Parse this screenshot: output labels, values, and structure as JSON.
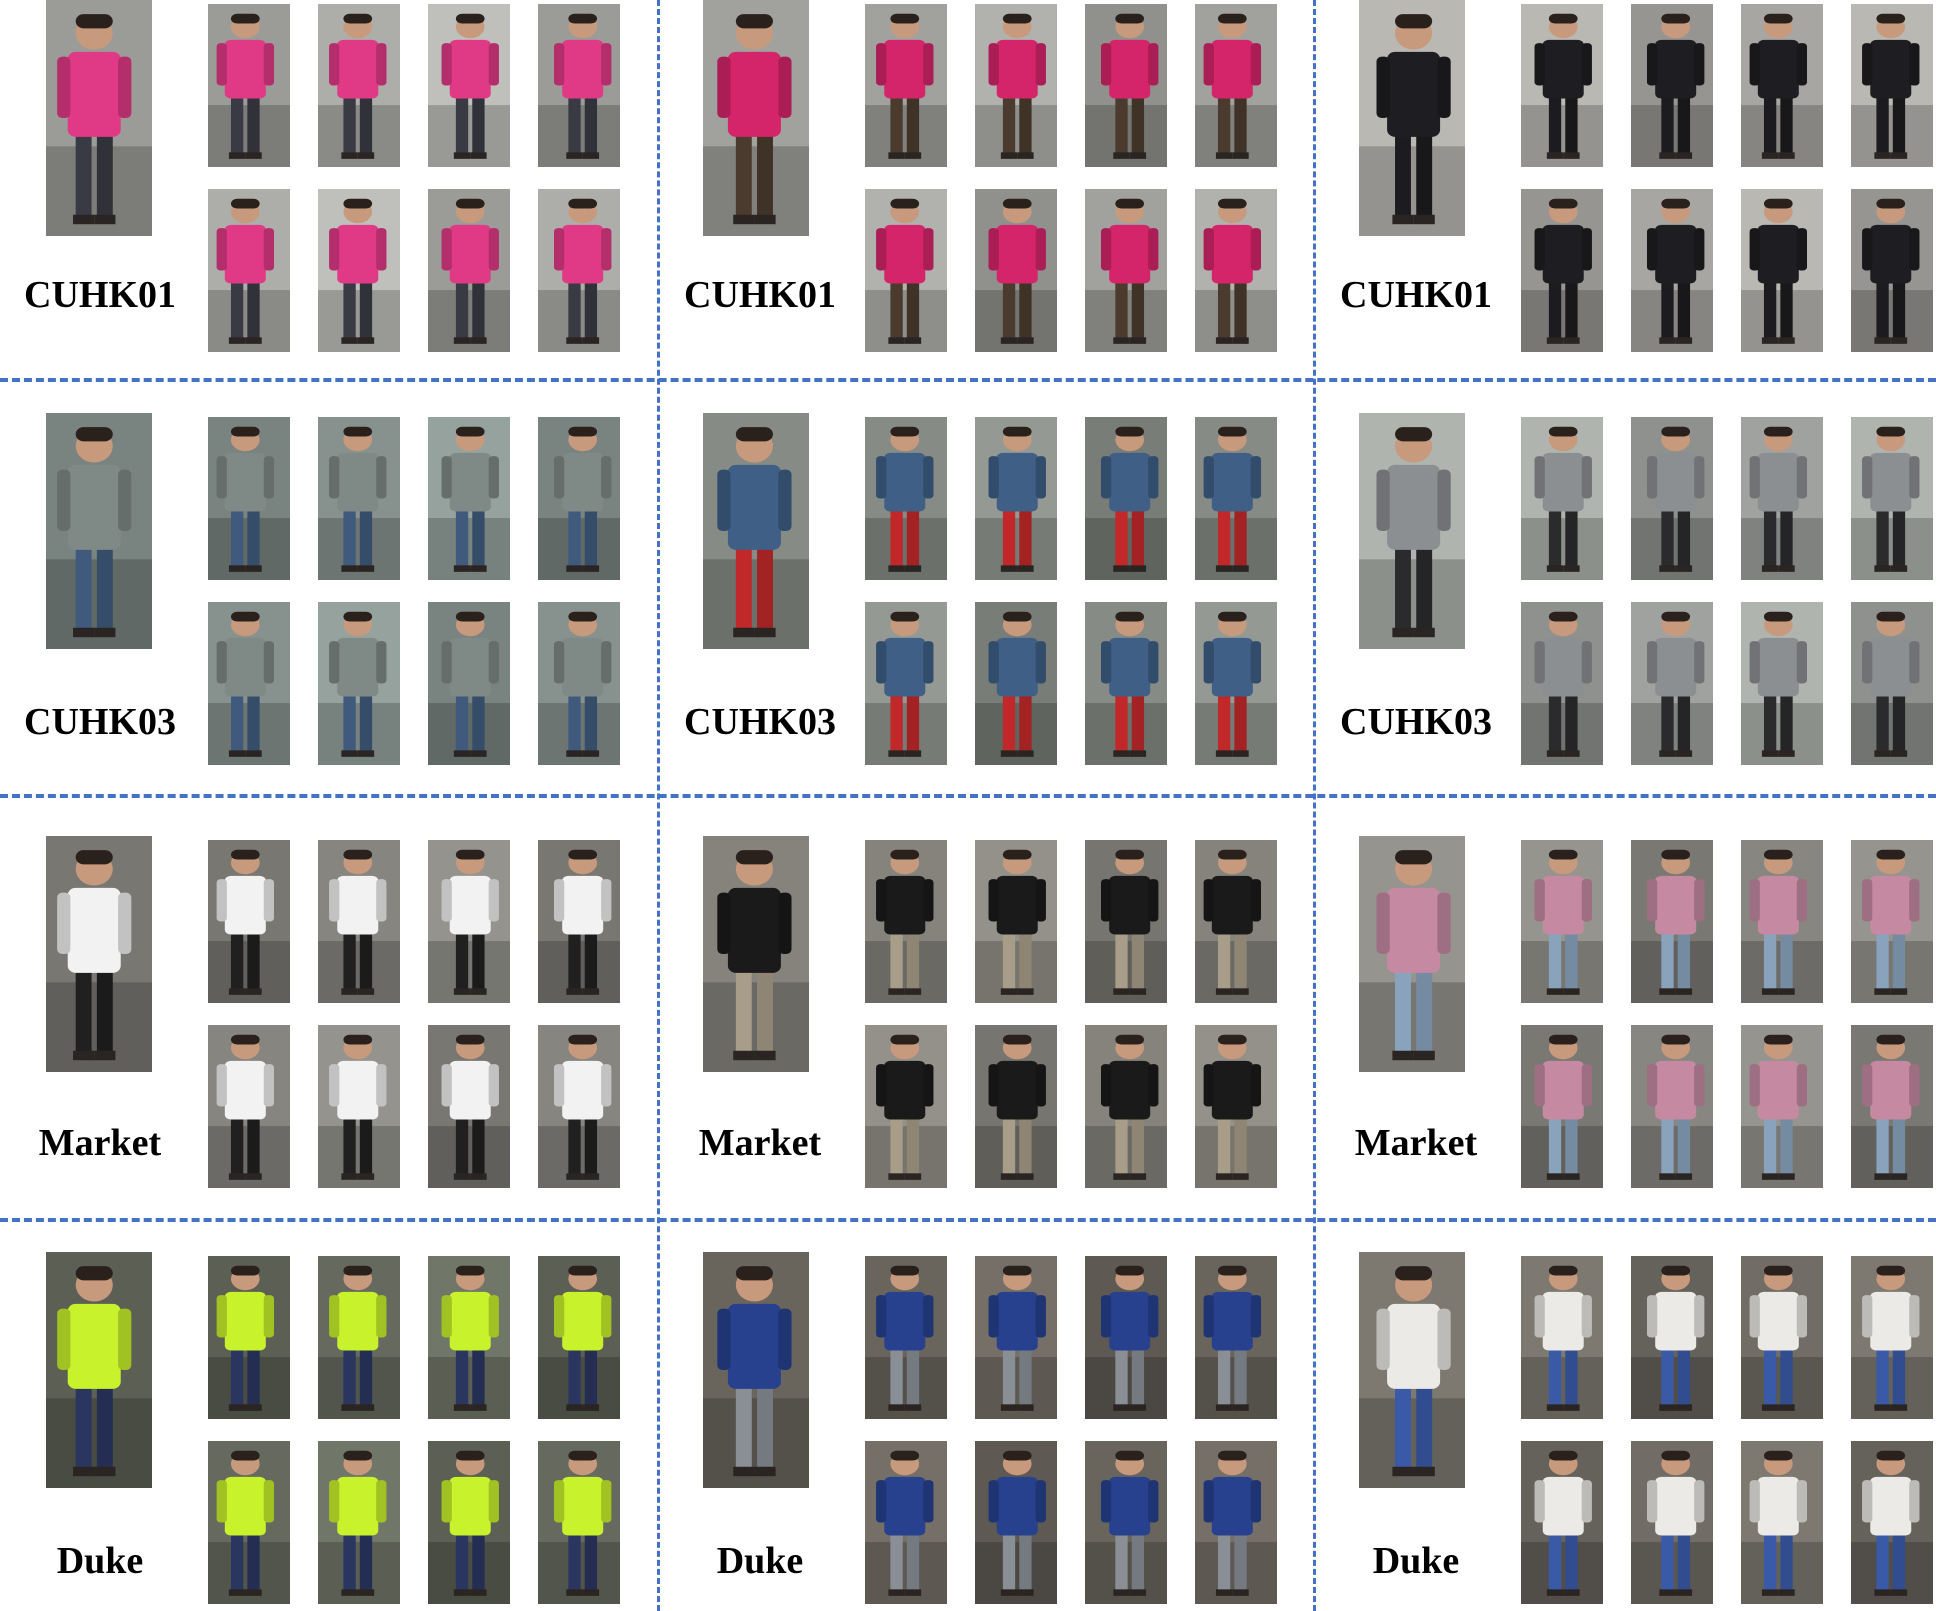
{
  "panels": [
    {
      "dataset": "CUHK01",
      "tones": [
        {
          "top": "#e03a86",
          "bottom": "#3a3a44",
          "bg": "#b6b6b2"
        },
        {
          "top": "#d4256a",
          "bottom": "#4a3b2e",
          "bg": "#a9a9a5"
        },
        {
          "top": "#1e1e22",
          "bottom": "#1c1c20",
          "bg": "#b0afaa"
        }
      ]
    },
    {
      "dataset": "CUHK03",
      "tones": [
        {
          "top": "#7f8a86",
          "bottom": "#3f5a7c",
          "bg": "#8e9a96"
        },
        {
          "top": "#3f5f86",
          "bottom": "#c0282a",
          "bg": "#8d938c"
        },
        {
          "top": "#8c8f92",
          "bottom": "#2b2b2e",
          "bg": "#a7aba6"
        }
      ]
    },
    {
      "dataset": "Market",
      "tones": [
        {
          "top": "#f2f2f2",
          "bottom": "#202020",
          "bg": "#8d8c86"
        },
        {
          "top": "#1a1a1a",
          "bottom": "#a79d88",
          "bg": "#8c8a82"
        },
        {
          "top": "#c58aa2",
          "bottom": "#8aa3bd",
          "bg": "#8f8d87"
        }
      ]
    },
    {
      "dataset": "Duke",
      "tones": [
        {
          "top": "#c8f22c",
          "bottom": "#2a3560",
          "bg": "#6b7063"
        },
        {
          "top": "#27418f",
          "bottom": "#8a8f96",
          "bg": "#6f6a62"
        },
        {
          "top": "#eceae6",
          "bottom": "#3a5aa8",
          "bg": "#77736b"
        }
      ]
    }
  ]
}
